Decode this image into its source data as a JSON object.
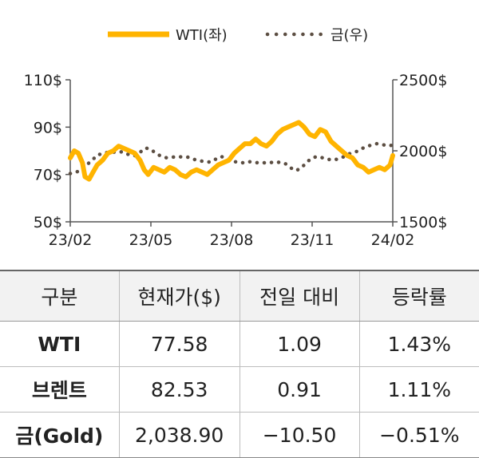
{
  "chart_data": {
    "type": "line",
    "legend": {
      "placement": "top-center"
    },
    "x_ticks": [
      "23/02",
      "23/05",
      "23/08",
      "23/11",
      "24/02"
    ],
    "y_left": {
      "ticks": [
        "110$",
        "90$",
        "70$",
        "50$"
      ],
      "range": [
        50,
        110
      ]
    },
    "y_right": {
      "ticks": [
        "2500$",
        "2000$",
        "1500$"
      ],
      "range": [
        1500,
        2500
      ]
    },
    "x_range": [
      0,
      12
    ],
    "series": [
      {
        "name": "WTI(좌)",
        "axis": "left",
        "color": "#ffb400",
        "style": "solid",
        "points": [
          [
            0.0,
            77
          ],
          [
            0.15,
            80
          ],
          [
            0.3,
            79
          ],
          [
            0.45,
            75
          ],
          [
            0.55,
            69
          ],
          [
            0.7,
            68
          ],
          [
            0.85,
            71
          ],
          [
            1.0,
            74
          ],
          [
            1.2,
            76
          ],
          [
            1.4,
            79
          ],
          [
            1.6,
            80
          ],
          [
            1.8,
            82
          ],
          [
            2.0,
            81
          ],
          [
            2.2,
            80
          ],
          [
            2.4,
            79
          ],
          [
            2.6,
            76
          ],
          [
            2.75,
            72
          ],
          [
            2.9,
            70
          ],
          [
            3.1,
            73
          ],
          [
            3.3,
            72
          ],
          [
            3.5,
            71
          ],
          [
            3.7,
            73
          ],
          [
            3.9,
            72
          ],
          [
            4.1,
            70
          ],
          [
            4.3,
            69
          ],
          [
            4.5,
            71
          ],
          [
            4.7,
            72
          ],
          [
            4.9,
            71
          ],
          [
            5.1,
            70
          ],
          [
            5.3,
            72
          ],
          [
            5.5,
            74
          ],
          [
            5.7,
            75
          ],
          [
            5.9,
            76
          ],
          [
            6.1,
            79
          ],
          [
            6.3,
            81
          ],
          [
            6.5,
            83
          ],
          [
            6.7,
            83
          ],
          [
            6.9,
            85
          ],
          [
            7.1,
            83
          ],
          [
            7.3,
            82
          ],
          [
            7.5,
            84
          ],
          [
            7.7,
            87
          ],
          [
            7.9,
            89
          ],
          [
            8.1,
            90
          ],
          [
            8.3,
            91
          ],
          [
            8.5,
            92
          ],
          [
            8.7,
            90
          ],
          [
            8.9,
            87
          ],
          [
            9.1,
            86
          ],
          [
            9.3,
            89
          ],
          [
            9.5,
            88
          ],
          [
            9.7,
            84
          ],
          [
            9.9,
            82
          ],
          [
            10.1,
            80
          ],
          [
            10.3,
            78
          ],
          [
            10.5,
            77
          ],
          [
            10.7,
            74
          ],
          [
            10.9,
            73
          ],
          [
            11.1,
            71
          ],
          [
            11.3,
            72
          ],
          [
            11.5,
            73
          ],
          [
            11.7,
            72
          ],
          [
            11.9,
            74
          ],
          [
            12.0,
            78
          ]
        ]
      },
      {
        "name": "금(우)",
        "axis": "right",
        "color": "#5c4e42",
        "style": "dotted",
        "points": [
          [
            0.0,
            1840
          ],
          [
            0.2,
            1850
          ],
          [
            0.4,
            1860
          ],
          [
            0.6,
            1900
          ],
          [
            0.8,
            1930
          ],
          [
            1.0,
            1970
          ],
          [
            1.2,
            1980
          ],
          [
            1.4,
            1990
          ],
          [
            1.6,
            1990
          ],
          [
            1.8,
            1995
          ],
          [
            2.0,
            1990
          ],
          [
            2.2,
            1970
          ],
          [
            2.4,
            1965
          ],
          [
            2.6,
            1990
          ],
          [
            2.8,
            2020
          ],
          [
            3.0,
            2010
          ],
          [
            3.2,
            1980
          ],
          [
            3.4,
            1960
          ],
          [
            3.6,
            1950
          ],
          [
            3.8,
            1955
          ],
          [
            4.0,
            1960
          ],
          [
            4.2,
            1955
          ],
          [
            4.4,
            1955
          ],
          [
            4.6,
            1940
          ],
          [
            4.8,
            1930
          ],
          [
            5.0,
            1925
          ],
          [
            5.2,
            1920
          ],
          [
            5.4,
            1940
          ],
          [
            5.6,
            1960
          ],
          [
            5.8,
            1950
          ],
          [
            6.0,
            1930
          ],
          [
            6.2,
            1920
          ],
          [
            6.4,
            1915
          ],
          [
            6.6,
            1925
          ],
          [
            6.8,
            1920
          ],
          [
            7.0,
            1915
          ],
          [
            7.2,
            1915
          ],
          [
            7.4,
            1920
          ],
          [
            7.6,
            1915
          ],
          [
            7.8,
            1920
          ],
          [
            8.0,
            1910
          ],
          [
            8.2,
            1880
          ],
          [
            8.4,
            1860
          ],
          [
            8.6,
            1880
          ],
          [
            8.8,
            1920
          ],
          [
            9.0,
            1950
          ],
          [
            9.2,
            1960
          ],
          [
            9.4,
            1950
          ],
          [
            9.6,
            1940
          ],
          [
            9.8,
            1935
          ],
          [
            10.0,
            1945
          ],
          [
            10.2,
            1960
          ],
          [
            10.4,
            1980
          ],
          [
            10.6,
            1990
          ],
          [
            10.8,
            2010
          ],
          [
            11.0,
            2030
          ],
          [
            11.2,
            2040
          ],
          [
            11.4,
            2050
          ],
          [
            11.6,
            2045
          ],
          [
            11.8,
            2035
          ],
          [
            12.0,
            2040
          ]
        ]
      }
    ]
  },
  "table": {
    "headers": [
      "구분",
      "현재가($)",
      "전일 대비",
      "등락률"
    ],
    "rows": [
      {
        "name": "WTI",
        "price": "77.58",
        "change": "1.09",
        "rate": "1.43%"
      },
      {
        "name": "브렌트",
        "price": "82.53",
        "change": "0.91",
        "rate": "1.11%"
      },
      {
        "name": "금(Gold)",
        "price": "2,038.90",
        "change": "−10.50",
        "rate": "−0.51%"
      }
    ]
  }
}
